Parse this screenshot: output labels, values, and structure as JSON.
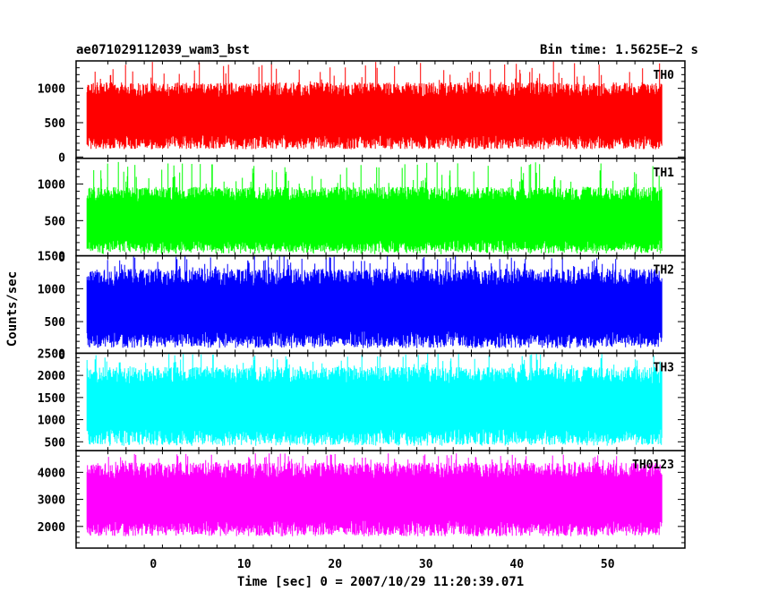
{
  "chart_data": {
    "type": "line",
    "title_left": "ae071029112039_wam3_bst",
    "title_right": "Bin time: 1.5625E−2 s",
    "xlabel": "Time [sec] 0 = 2007/10/29 11:20:39.071",
    "ylabel": "Counts/sec",
    "xlim": [
      -8.5,
      58.5
    ],
    "data_xrange": [
      -7.3,
      56.0
    ],
    "x_ticks": [
      "0",
      "10",
      "20",
      "30",
      "40",
      "50"
    ],
    "x_tick_values": [
      0,
      10,
      20,
      30,
      40,
      50
    ],
    "grid": false,
    "panels": [
      {
        "name": "TH0",
        "color": "#ff0000",
        "ylim": [
          -20,
          1400
        ],
        "ticks": [
          0,
          500,
          1000
        ],
        "tick_labels": [
          "0",
          "500",
          "1000"
        ],
        "mean": 600,
        "low": 120,
        "high": 1050,
        "peak": 1400
      },
      {
        "name": "TH1",
        "color": "#00ff00",
        "ylim": [
          20,
          1350
        ],
        "ticks": [
          0,
          500,
          1000
        ],
        "tick_labels": [
          "0",
          "500",
          "1000"
        ],
        "mean": 500,
        "low": 120,
        "high": 1000,
        "peak": 1300
      },
      {
        "name": "TH2",
        "color": "#0000ff",
        "ylim": [
          20,
          1500
        ],
        "ticks": [
          0,
          500,
          1000,
          1500
        ],
        "tick_labels": [
          "0",
          "500",
          "1000",
          "1500"
        ],
        "mean": 700,
        "low": 150,
        "high": 1300,
        "peak": 1500
      },
      {
        "name": "TH3",
        "color": "#00ffff",
        "ylim": [
          300,
          2500
        ],
        "ticks": [
          500,
          1000,
          1500,
          2000,
          2500
        ],
        "tick_labels": [
          "500",
          "1000",
          "1500",
          "2000",
          "2500"
        ],
        "mean": 1300,
        "low": 500,
        "high": 2200,
        "peak": 2500
      },
      {
        "name": "TH0123",
        "color": "#ff00ff",
        "ylim": [
          1200,
          4800
        ],
        "ticks": [
          2000,
          3000,
          4000
        ],
        "tick_labels": [
          "2000",
          "3000",
          "4000"
        ],
        "mean": 3000,
        "low": 1700,
        "high": 4300,
        "peak": 4700
      }
    ]
  }
}
